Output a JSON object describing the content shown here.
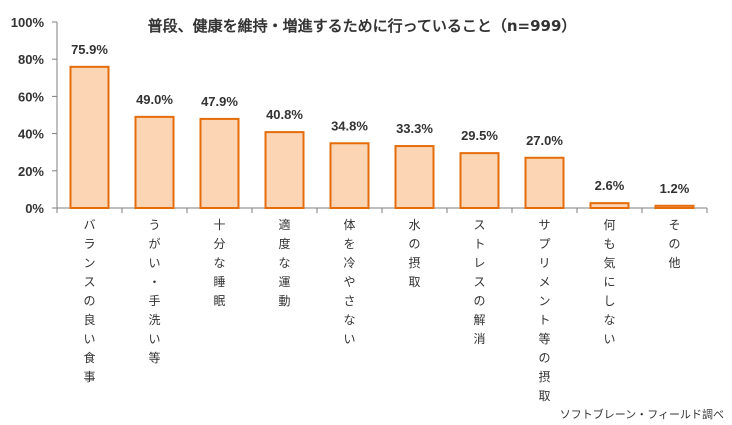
{
  "colors": {
    "bar_fill": "#fcd5b5",
    "bar_stroke": "#e46c0a",
    "axis": "#7f7f7f",
    "text": "#333333"
  },
  "chart_data": {
    "type": "bar",
    "title": "普段、健康を維持・増進するために行っていること（n=999）",
    "categories": [
      "バランスの良い食事",
      "うがい・手洗い等",
      "十分な睡眠",
      "適度な運動",
      "体を冷やさない",
      "水の摂取",
      "ストレスの解消",
      "サプリメント等の摂取",
      "何も気にしない",
      "その他"
    ],
    "values": [
      75.9,
      49.0,
      47.9,
      40.8,
      34.8,
      33.3,
      29.5,
      27.0,
      2.6,
      1.2
    ],
    "value_labels": [
      "75.9%",
      "49.0%",
      "47.9%",
      "40.8%",
      "34.8%",
      "33.3%",
      "29.5%",
      "27.0%",
      "2.6%",
      "1.2%"
    ],
    "ylim": [
      0,
      100
    ],
    "yticks": [
      0,
      20,
      40,
      60,
      80,
      100
    ],
    "ytick_labels": [
      "0%",
      "20%",
      "40%",
      "60%",
      "80%",
      "100%"
    ],
    "xlabel": "",
    "ylabel": "",
    "grid": false
  },
  "source_note": "ソフトブレーン・フィールド調べ"
}
